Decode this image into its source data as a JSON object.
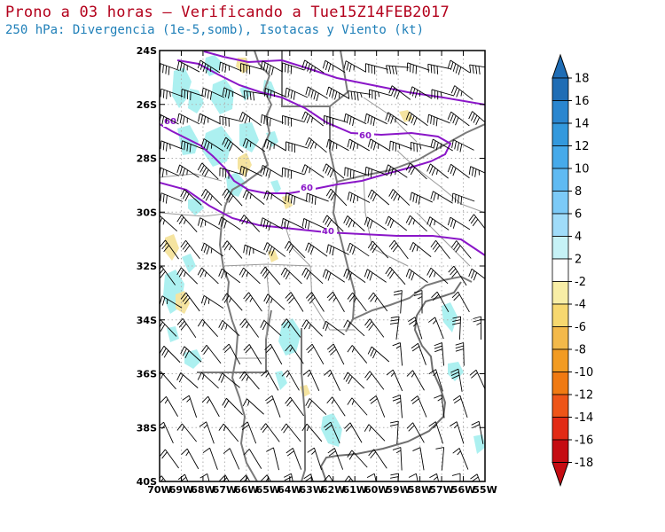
{
  "header": {
    "title": "Prono a 03 horas — Verificando a Tue15Z14FEB2017",
    "subtitle": "250 hPa: Divergencia (1e-5,somb), Isotacas y Viento (kt)"
  },
  "map": {
    "lat_range": [
      -40,
      -24
    ],
    "lon_range": [
      -70,
      -55
    ],
    "lat_labels": [
      "24S",
      "26S",
      "28S",
      "30S",
      "32S",
      "34S",
      "36S",
      "38S",
      "40S"
    ],
    "lon_labels": [
      "70W",
      "69W",
      "68W",
      "67W",
      "66W",
      "65W",
      "64W",
      "63W",
      "62W",
      "61W",
      "60W",
      "59W",
      "58W",
      "57W",
      "56W",
      "55W"
    ],
    "isotach_labels": [
      "60",
      "60",
      "60",
      "40"
    ],
    "colors": {
      "isotach": "#8a16c8",
      "borders": "#7a7a7a",
      "grid": "#b0b0b0",
      "divergence_pos": "#a8f0f0",
      "divergence_neg": "#f5e4a0"
    }
  },
  "colorbar": {
    "labels": [
      "18",
      "16",
      "14",
      "12",
      "10",
      "8",
      "6",
      "4",
      "2",
      "-2",
      "-4",
      "-6",
      "-8",
      "-10",
      "-12",
      "-14",
      "-16",
      "-18"
    ],
    "colors": [
      "#1f6db5",
      "#2a86cf",
      "#3399dd",
      "#46aaea",
      "#5fbaf2",
      "#7ccaf7",
      "#a0dcf9",
      "#c6f2f6",
      "#ffffff",
      "#ffffff",
      "#f8eea6",
      "#f7d86f",
      "#f3b94a",
      "#f29b22",
      "#f07a12",
      "#ee5518",
      "#e22b15",
      "#c50c12"
    ]
  }
}
